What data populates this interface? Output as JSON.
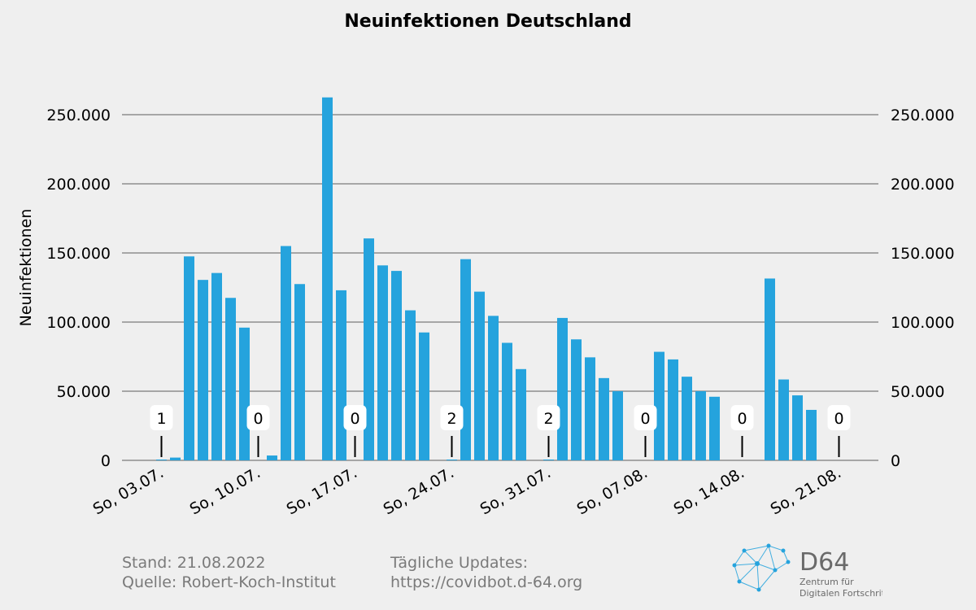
{
  "chart_data": {
    "type": "bar",
    "title": "Neuinfektionen Deutschland",
    "ylabel": "Neuinfektionen",
    "xlabel": "",
    "ylim": [
      0,
      280000
    ],
    "yticks": [
      0,
      50000,
      100000,
      150000,
      200000,
      250000
    ],
    "ytick_labels": [
      "0",
      "50.000",
      "100.000",
      "150.000",
      "200.000",
      "250.000"
    ],
    "grid": true,
    "bar_color": "#25a3dd",
    "dates": [
      "2022-07-03",
      "2022-07-04",
      "2022-07-05",
      "2022-07-06",
      "2022-07-07",
      "2022-07-08",
      "2022-07-09",
      "2022-07-10",
      "2022-07-11",
      "2022-07-12",
      "2022-07-13",
      "2022-07-14",
      "2022-07-15",
      "2022-07-16",
      "2022-07-17",
      "2022-07-18",
      "2022-07-19",
      "2022-07-20",
      "2022-07-21",
      "2022-07-22",
      "2022-07-23",
      "2022-07-24",
      "2022-07-25",
      "2022-07-26",
      "2022-07-27",
      "2022-07-28",
      "2022-07-29",
      "2022-07-30",
      "2022-07-31",
      "2022-08-01",
      "2022-08-02",
      "2022-08-03",
      "2022-08-04",
      "2022-08-05",
      "2022-08-06",
      "2022-08-07",
      "2022-08-08",
      "2022-08-09",
      "2022-08-10",
      "2022-08-11",
      "2022-08-12",
      "2022-08-13",
      "2022-08-14",
      "2022-08-15",
      "2022-08-16",
      "2022-08-17",
      "2022-08-18",
      "2022-08-19",
      "2022-08-20",
      "2022-08-21"
    ],
    "values": [
      1,
      2000,
      147500,
      130500,
      135500,
      117500,
      96000,
      0,
      3500,
      155000,
      127500,
      0,
      262500,
      123000,
      0,
      160500,
      141000,
      137000,
      108500,
      92500,
      0,
      2,
      145500,
      122000,
      104500,
      85000,
      66000,
      0,
      2,
      103000,
      87500,
      74500,
      59500,
      50000,
      0,
      0,
      78500,
      73000,
      60500,
      50000,
      46000,
      0,
      0,
      0,
      131500,
      58500,
      47000,
      36500,
      0,
      0
    ],
    "xtick_labels": [
      "So, 03.07.",
      "So, 10.07.",
      "So, 17.07.",
      "So, 24.07.",
      "So, 31.07.",
      "So, 07.08.",
      "So, 14.08.",
      "So, 21.08."
    ],
    "sunday_annotations": [
      "1",
      "0",
      "0",
      "2",
      "2",
      "0",
      "0",
      "0"
    ]
  },
  "footer": {
    "stand": "Stand: 21.08.2022",
    "quelle": "Quelle: Robert-Koch-Institut",
    "updates_label": "Tägliche Updates:",
    "updates_url": "https://covidbot.d-64.org"
  },
  "logo": {
    "name": "D64",
    "subtitle_line1": "Zentrum für",
    "subtitle_line2": "Digitalen Fortschritt",
    "color": "#25a3dd"
  }
}
